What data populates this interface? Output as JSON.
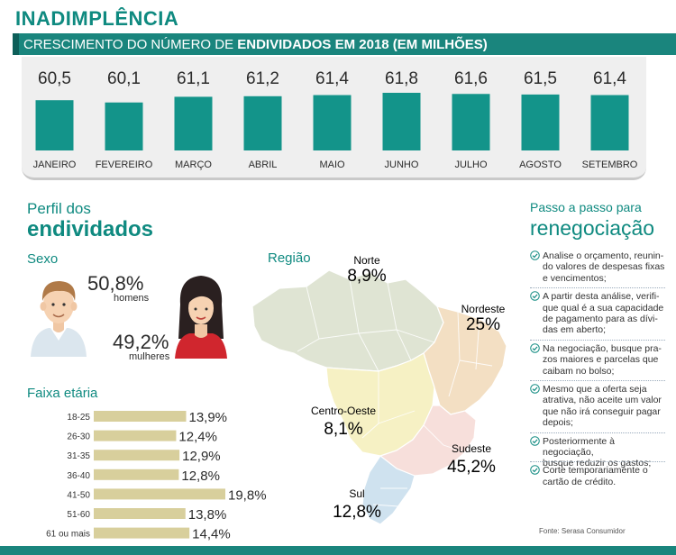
{
  "header": {
    "title": "INADIMPLÊNCIA",
    "subtitle_prefix": "CRESCIMENTO DO NÚMERO DE",
    "subtitle_bold": "ENDIVIDADOS EM 2018 (EM MILHÕES)"
  },
  "perfil": {
    "title_small": "Perfil dos",
    "title_big": "endividados",
    "sexo_label": "Sexo",
    "men_pct": "50,8%",
    "men_label": "homens",
    "women_pct": "49,2%",
    "women_label": "mulheres",
    "faixa_label": "Faixa etária",
    "regiao_label": "Região"
  },
  "regions": [
    {
      "name": "Norte",
      "value": "8,9%",
      "color": "#dfe4d3"
    },
    {
      "name": "Nordeste",
      "value": "25%",
      "color": "#f3dfc3"
    },
    {
      "name": "Centro-Oeste",
      "value": "8,1%",
      "color": "#f6f1c4"
    },
    {
      "name": "Sudeste",
      "value": "45,2%",
      "color": "#f7dfdb"
    },
    {
      "name": "Sul",
      "value": "12,8%",
      "color": "#cfe2ef"
    }
  ],
  "steps": {
    "title_small": "Passo a passo para",
    "title_big": "renegociação",
    "items": [
      [
        "Analise o orçamento, reunin-",
        "do valores de despesas fixas",
        "e vencimentos;"
      ],
      [
        "A partir desta análise, verifi-",
        "que qual é a sua capacidade",
        "de pagamento para as dívi-",
        "das em aberto;"
      ],
      [
        "Na negociação, busque pra-",
        "zos maiores e parcelas que",
        "caibam no bolso;"
      ],
      [
        "Mesmo que a oferta seja",
        "atrativa, não aceite um valor",
        "que não irá conseguir pagar",
        "depois;"
      ],
      [
        "Posteriormente à negociação,",
        "busque reduzir os gastos;"
      ],
      [
        "Corte temporariamente o",
        "cartão de crédito."
      ]
    ],
    "source": "Fonte: Serasa Consumidor"
  },
  "colors": {
    "accent": "#0f8a80",
    "bar_teal": "#13948a",
    "bar_olive": "#d8cf9c"
  },
  "chart_data": [
    {
      "type": "bar",
      "title": "CRESCIMENTO DO NÚMERO DE ENDIVIDADOS EM 2018 (EM MILHÕES)",
      "categories": [
        "JANEIRO",
        "FEVEREIRO",
        "MARÇO",
        "ABRIL",
        "MAIO",
        "JUNHO",
        "JULHO",
        "AGOSTO",
        "SETEMBRO"
      ],
      "values": [
        60.5,
        60.1,
        61.1,
        61.2,
        61.4,
        61.8,
        61.6,
        61.5,
        61.4
      ],
      "labels": [
        "60,5",
        "60,1",
        "61,1",
        "61,2",
        "61,4",
        "61,8",
        "61,6",
        "61,5",
        "61,4"
      ],
      "grid": false
    },
    {
      "type": "bar",
      "orientation": "horizontal",
      "title": "Faixa etária",
      "categories": [
        "18-25",
        "26-30",
        "31-35",
        "36-40",
        "41-50",
        "51-60",
        "61 ou mais"
      ],
      "values": [
        13.9,
        12.4,
        12.9,
        12.8,
        19.8,
        13.8,
        14.4
      ],
      "labels": [
        "13,9%",
        "12,4%",
        "12,9%",
        "12,8%",
        "19,8%",
        "13,8%",
        "14,4%"
      ],
      "grid": false
    },
    {
      "type": "pie",
      "title": "Sexo",
      "categories": [
        "homens",
        "mulheres"
      ],
      "values": [
        50.8,
        49.2
      ]
    }
  ]
}
